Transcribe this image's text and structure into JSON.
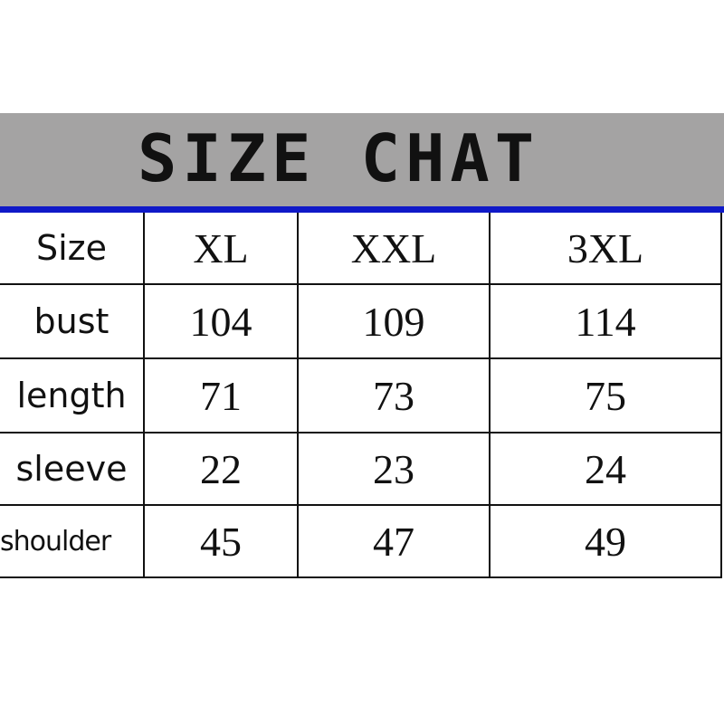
{
  "title": "SIZE CHAT",
  "colors": {
    "banner": "#a4a3a3",
    "divider": "#0f19c8"
  },
  "table": {
    "header": {
      "label": "Size",
      "sizes": [
        "XL",
        "XXL",
        "3XL"
      ]
    },
    "rows": [
      {
        "label": "bust",
        "values": [
          "104",
          "109",
          "114"
        ]
      },
      {
        "label": "length",
        "values": [
          "71",
          "73",
          "75"
        ]
      },
      {
        "label": "sleeve",
        "values": [
          "22",
          "23",
          "24"
        ]
      },
      {
        "label": "shoulder",
        "values": [
          "45",
          "47",
          "49"
        ]
      }
    ]
  }
}
